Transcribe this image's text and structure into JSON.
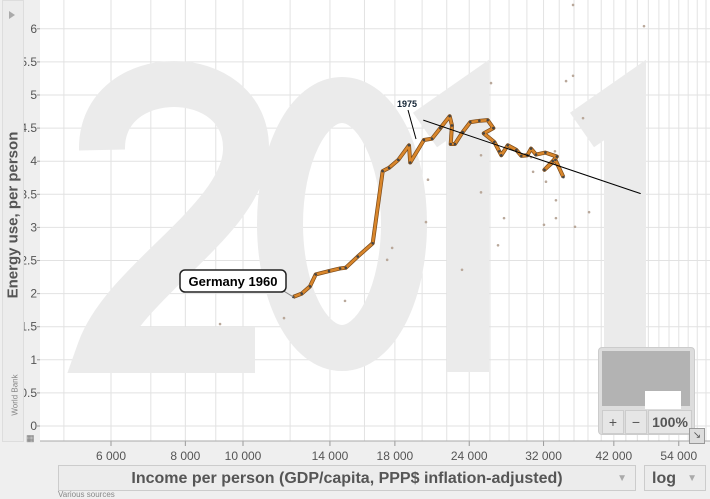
{
  "y_axis_title": "Energy use, per person",
  "y_source": "World Bank",
  "x_axis_selector": "Income per person (GDP/capita, PPP$ inflation-adjusted)",
  "x_scale_selector": "log",
  "x_source": "Various sources",
  "year_watermark": "2011",
  "zoom_panel": {
    "zoom_in": "+",
    "zoom_out": "−",
    "zoom_level": "100%"
  },
  "colors": {
    "trail": "#d9862b",
    "bubble": "#b9a89a",
    "grid": "#dddddd"
  },
  "chart_data": {
    "type": "scatter",
    "xlabel": "Income per person (GDP/capita, PPP$ inflation-adjusted)",
    "ylabel": "Energy use, per person",
    "xscale": "log",
    "xlim": [
      4900,
      58000
    ],
    "ylim": [
      -0.25,
      6.65
    ],
    "x_ticks": [
      {
        "v": 6000,
        "label": "6 000"
      },
      {
        "v": 8000,
        "label": "8 000"
      },
      {
        "v": 10000,
        "label": "10 000"
      },
      {
        "v": 14000,
        "label": "14 000"
      },
      {
        "v": 18000,
        "label": "18 000"
      },
      {
        "v": 24000,
        "label": "24 000"
      },
      {
        "v": 32000,
        "label": "32 000"
      },
      {
        "v": 42000,
        "label": "42 000"
      },
      {
        "v": 54000,
        "label": "54 000"
      }
    ],
    "y_ticks": [
      {
        "v": 0,
        "label": "0"
      },
      {
        "v": 0.5,
        "label": "0.5"
      },
      {
        "v": 1,
        "label": "1"
      },
      {
        "v": 1.5,
        "label": "1.5"
      },
      {
        "v": 2,
        "label": "2"
      },
      {
        "v": 2.5,
        "label": "2.5"
      },
      {
        "v": 3,
        "label": "3"
      },
      {
        "v": 3.5,
        "label": "3.5"
      },
      {
        "v": 4,
        "label": "4"
      },
      {
        "v": 4.5,
        "label": "4.5"
      },
      {
        "v": 5,
        "label": "5"
      },
      {
        "v": 5.5,
        "label": "5.5"
      },
      {
        "v": 6,
        "label": "6"
      }
    ],
    "trail": {
      "name": "Germany",
      "points": [
        [
          12150,
          1.95
        ],
        [
          12550,
          2.0
        ],
        [
          12960,
          2.11
        ],
        [
          13250,
          2.29
        ],
        [
          13950,
          2.34
        ],
        [
          14560,
          2.38
        ],
        [
          14880,
          2.39
        ],
        [
          15590,
          2.56
        ],
        [
          16520,
          2.76
        ],
        [
          17170,
          3.85
        ],
        [
          17600,
          3.9
        ],
        [
          18240,
          4.02
        ],
        [
          19010,
          4.24
        ],
        [
          19100,
          3.98
        ],
        [
          20140,
          4.32
        ],
        [
          20780,
          4.34
        ],
        [
          21460,
          4.5
        ],
        [
          22250,
          4.68
        ],
        [
          22450,
          4.54
        ],
        [
          22340,
          4.26
        ],
        [
          22710,
          4.26
        ],
        [
          23400,
          4.44
        ],
        [
          24100,
          4.59
        ],
        [
          24960,
          4.61
        ],
        [
          25780,
          4.62
        ],
        [
          26350,
          4.5
        ],
        [
          25390,
          4.42
        ],
        [
          26450,
          4.29
        ],
        [
          26960,
          4.15
        ],
        [
          27170,
          4.09
        ],
        [
          27860,
          4.24
        ],
        [
          28800,
          4.17
        ],
        [
          29360,
          4.08
        ],
        [
          30060,
          4.09
        ],
        [
          30490,
          4.19
        ],
        [
          31080,
          4.1
        ],
        [
          32230,
          4.13
        ],
        [
          33680,
          4.07
        ],
        [
          33160,
          4.0
        ],
        [
          32110,
          3.87
        ],
        [
          33500,
          4.02
        ],
        [
          34550,
          3.76
        ]
      ]
    },
    "trend_line": [
      [
        20090,
        4.62
      ],
      [
        46600,
        3.51
      ]
    ],
    "annotations": [
      {
        "text": "Germany 1960",
        "at": [
          12150,
          1.95
        ]
      },
      {
        "text": "1975",
        "at": [
          19450,
          4.12
        ]
      }
    ],
    "other_points": [
      [
        9150,
        1.54
      ],
      [
        11720,
        1.63
      ],
      [
        14840,
        1.89
      ],
      [
        17470,
        2.51
      ],
      [
        17810,
        2.69
      ],
      [
        20300,
        3.08
      ],
      [
        20460,
        3.72
      ],
      [
        23080,
        4.35
      ],
      [
        23340,
        2.36
      ],
      [
        25120,
        4.09
      ],
      [
        25120,
        3.53
      ],
      [
        26110,
        5.18
      ],
      [
        27460,
        3.14
      ],
      [
        26830,
        2.73
      ],
      [
        30490,
        4.06
      ],
      [
        30730,
        3.84
      ],
      [
        32050,
        3.04
      ],
      [
        32300,
        3.69
      ],
      [
        33440,
        4.15
      ],
      [
        33570,
        3.41
      ],
      [
        33570,
        3.14
      ],
      [
        34910,
        5.21
      ],
      [
        35870,
        5.29
      ],
      [
        36140,
        3.01
      ],
      [
        37280,
        4.65
      ],
      [
        38160,
        3.23
      ],
      [
        47200,
        6.04
      ],
      [
        35870,
        6.36
      ]
    ]
  }
}
